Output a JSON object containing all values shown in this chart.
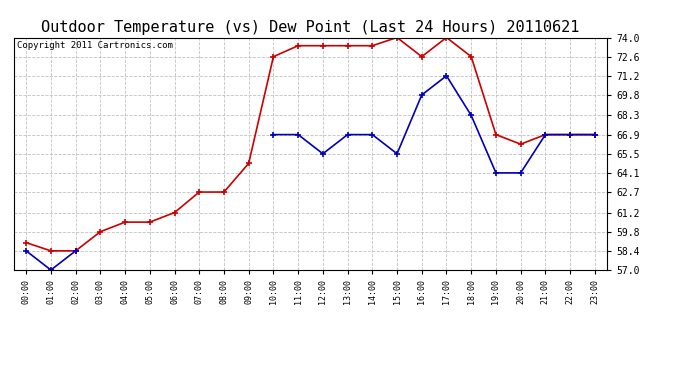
{
  "title": "Outdoor Temperature (vs) Dew Point (Last 24 Hours) 20110621",
  "copyright": "Copyright 2011 Cartronics.com",
  "x_labels": [
    "00:00",
    "01:00",
    "02:00",
    "03:00",
    "04:00",
    "05:00",
    "06:00",
    "07:00",
    "08:00",
    "09:00",
    "10:00",
    "11:00",
    "12:00",
    "13:00",
    "14:00",
    "15:00",
    "16:00",
    "17:00",
    "18:00",
    "19:00",
    "20:00",
    "21:00",
    "22:00",
    "23:00"
  ],
  "temp_values": [
    59.0,
    58.4,
    58.4,
    59.8,
    60.5,
    60.5,
    61.2,
    62.7,
    62.7,
    64.8,
    72.6,
    73.4,
    73.4,
    73.4,
    73.4,
    74.0,
    72.6,
    74.0,
    72.6,
    66.9,
    66.2,
    66.9,
    66.9,
    66.9
  ],
  "dew_values": [
    58.4,
    57.0,
    58.4,
    null,
    null,
    null,
    null,
    null,
    null,
    null,
    66.9,
    66.9,
    65.5,
    66.9,
    66.9,
    65.5,
    69.8,
    71.2,
    68.3,
    64.1,
    64.1,
    66.9,
    66.9,
    66.9
  ],
  "ylim": [
    57.0,
    74.0
  ],
  "yticks": [
    57.0,
    58.4,
    59.8,
    61.2,
    62.7,
    64.1,
    65.5,
    66.9,
    68.3,
    69.8,
    71.2,
    72.6,
    74.0
  ],
  "temp_color": "#cc0000",
  "dew_color": "#0000bb",
  "bg_color": "#ffffff",
  "grid_color": "#bbbbbb",
  "title_fontsize": 11,
  "copyright_fontsize": 6.5
}
